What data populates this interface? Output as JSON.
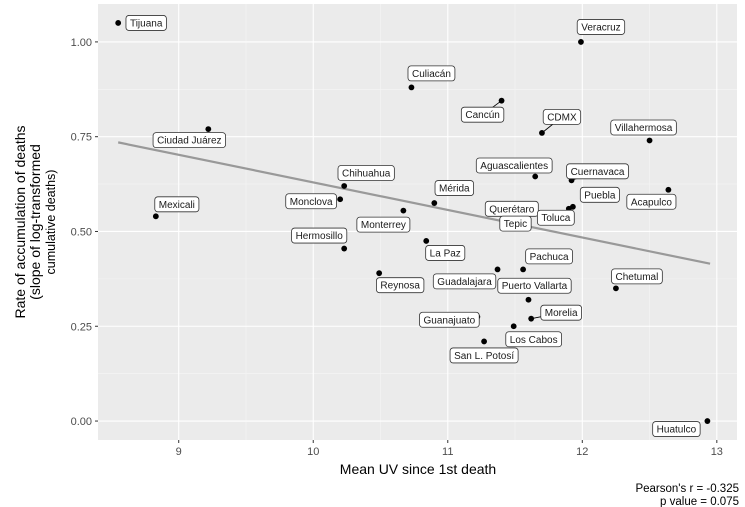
{
  "chart_data": {
    "type": "scatter",
    "xlabel": "Mean UV since 1st death",
    "ylabel_lines": [
      "Rate of accumulation of deaths",
      "(slope of log-transformed",
      "cumulative deaths)"
    ],
    "xlim": [
      8.4,
      13.15
    ],
    "ylim": [
      -0.05,
      1.1
    ],
    "x_ticks": [
      9,
      10,
      11,
      12,
      13
    ],
    "y_ticks": [
      0.0,
      0.25,
      0.5,
      0.75,
      1.0
    ],
    "y_tick_labels": [
      "0.00",
      "0.25",
      "0.50",
      "0.75",
      "1.00"
    ],
    "grid": true,
    "trend_line": {
      "x": [
        8.55,
        12.95
      ],
      "y": [
        0.735,
        0.415
      ]
    },
    "points": [
      {
        "name": "Tijuana",
        "x": 8.55,
        "y": 1.05
      },
      {
        "name": "Veracruz",
        "x": 11.99,
        "y": 1.0
      },
      {
        "name": "Culiacán",
        "x": 10.73,
        "y": 0.88
      },
      {
        "name": "Cancún",
        "x": 11.4,
        "y": 0.845
      },
      {
        "name": "Ciudad Juárez",
        "x": 9.22,
        "y": 0.77
      },
      {
        "name": "CDMX",
        "x": 11.7,
        "y": 0.76
      },
      {
        "name": "Villahermosa",
        "x": 12.5,
        "y": 0.74
      },
      {
        "name": "Aguascalientes",
        "x": 11.65,
        "y": 0.645
      },
      {
        "name": "Cuernavaca",
        "x": 11.92,
        "y": 0.635
      },
      {
        "name": "Chihuahua",
        "x": 10.23,
        "y": 0.62
      },
      {
        "name": "Acapulco",
        "x": 12.64,
        "y": 0.61
      },
      {
        "name": "Mérida",
        "x": 10.9,
        "y": 0.575
      },
      {
        "name": "Querétaro",
        "x": 11.58,
        "y": 0.565
      },
      {
        "name": "Puebla",
        "x": 11.93,
        "y": 0.565
      },
      {
        "name": "Tepic",
        "x": 11.6,
        "y": 0.555
      },
      {
        "name": "Toluca",
        "x": 11.9,
        "y": 0.56
      },
      {
        "name": "Monclova",
        "x": 10.2,
        "y": 0.585
      },
      {
        "name": "Monterrey",
        "x": 10.67,
        "y": 0.555
      },
      {
        "name": "Mexicali",
        "x": 8.83,
        "y": 0.54
      },
      {
        "name": "Hermosillo",
        "x": 10.23,
        "y": 0.455
      },
      {
        "name": "La Paz",
        "x": 10.84,
        "y": 0.475
      },
      {
        "name": "Pachuca",
        "x": 11.56,
        "y": 0.4
      },
      {
        "name": "Guadalajara",
        "x": 11.37,
        "y": 0.4
      },
      {
        "name": "Reynosa",
        "x": 10.49,
        "y": 0.39
      },
      {
        "name": "Chetumal",
        "x": 12.25,
        "y": 0.35
      },
      {
        "name": "Puerto Vallarta",
        "x": 11.6,
        "y": 0.32
      },
      {
        "name": "Morelia",
        "x": 11.62,
        "y": 0.27
      },
      {
        "name": "Guanajuato",
        "x": 11.22,
        "y": 0.275
      },
      {
        "name": "Los Cabos",
        "x": 11.49,
        "y": 0.25
      },
      {
        "name": "San L. Potosí",
        "x": 11.27,
        "y": 0.21
      },
      {
        "name": "Huatulco",
        "x": 12.93,
        "y": 0.0
      }
    ],
    "annotation_lines": [
      "Pearson's r = -0.325",
      "p value = 0.075"
    ]
  }
}
